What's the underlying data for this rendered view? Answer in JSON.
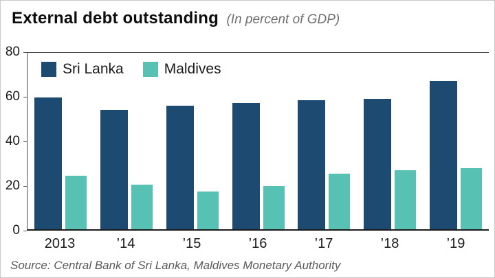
{
  "title": "External debt outstanding",
  "subtitle": "(In percent of GDP)",
  "source": "Source: Central Bank of Sri Lanka, Maldives Monetary Authority",
  "colors": {
    "sri_lanka": "#1d4a70",
    "maldives": "#57c1b4",
    "axis": "#4a4a4a",
    "text": "#1a1a1a"
  },
  "chart_data": {
    "type": "bar",
    "categories": [
      "2013",
      "’14",
      "’15",
      "’16",
      "’17",
      "’18",
      "’19"
    ],
    "series": [
      {
        "name": "Sri Lanka",
        "color": "#1d4a70",
        "values": [
          59,
          53.5,
          55.5,
          56.5,
          58,
          58.5,
          66.5
        ]
      },
      {
        "name": "Maldives",
        "color": "#57c1b4",
        "values": [
          24,
          20,
          17,
          19.5,
          25,
          26.5,
          27.5
        ]
      }
    ],
    "ylabel": "",
    "xlabel": "",
    "ylim": [
      0,
      80
    ],
    "yticks": [
      0,
      20,
      40,
      60,
      80
    ],
    "grid": false,
    "legend_position": "top-left"
  }
}
